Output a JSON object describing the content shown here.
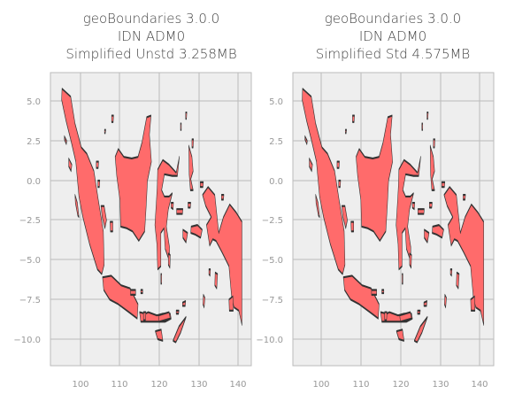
{
  "panels": [
    {
      "title_lines": [
        "geoBoundaries 3.0.0",
        "IDN ADM0",
        "Simplified Unstd 3.258MB"
      ],
      "xticks": [
        "100",
        "110",
        "120",
        "130",
        "140"
      ],
      "yticks": [
        "5.0",
        "2.5",
        "0.0",
        "−2.5",
        "−5.0",
        "−7.5",
        "−10.0"
      ]
    },
    {
      "title_lines": [
        "geoBoundaries 3.0.0",
        "IDN ADM0",
        "Simplified Std 4.575MB"
      ],
      "xticks": [
        "100",
        "110",
        "120",
        "130",
        "140"
      ],
      "yticks": [
        "5.0",
        "2.5",
        "0.0",
        "−2.5",
        "−5.0",
        "−7.5",
        "−10.0"
      ]
    }
  ],
  "style": {
    "fill_color": "#ff6b6b",
    "edge_color": "#333333",
    "background": "#eeeeee",
    "grid_color": "#bbbbbb"
  },
  "chart_data": {
    "type": "map",
    "xlim": [
      93,
      143
    ],
    "ylim": [
      -12,
      6.2
    ],
    "grid": true
  }
}
